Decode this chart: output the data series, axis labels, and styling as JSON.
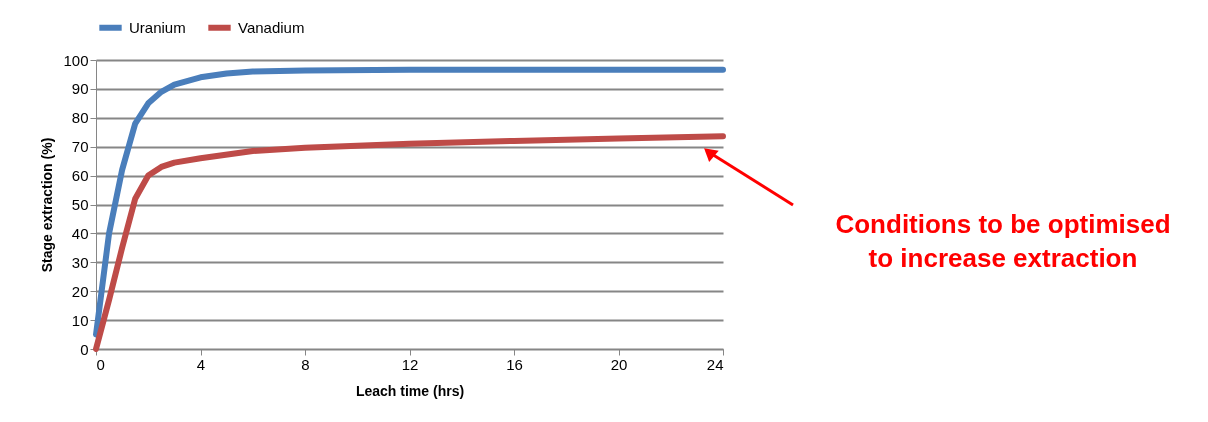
{
  "chart_data": {
    "type": "line",
    "xlabel": "Leach time (hrs)",
    "ylabel": "Stage extraction (%)",
    "xlim": [
      0,
      24
    ],
    "xticks": [
      0,
      4,
      8,
      12,
      16,
      20,
      24
    ],
    "ylim": [
      0,
      100
    ],
    "yticks": [
      0,
      10,
      20,
      30,
      40,
      50,
      60,
      70,
      80,
      90,
      100
    ],
    "grid": "y",
    "legend": "top",
    "marker": "none",
    "line_style": "solid",
    "series": [
      {
        "name": "Uranium",
        "color": "#4a7ebb",
        "x": [
          0,
          0.5,
          1,
          1.5,
          2,
          2.5,
          3,
          4,
          5,
          6,
          8,
          12,
          24
        ],
        "values": [
          5,
          40,
          62,
          78,
          85,
          89,
          91.5,
          94,
          95.3,
          96,
          96.4,
          96.6,
          96.6
        ]
      },
      {
        "name": "Vanadium",
        "color": "#be4b48",
        "x": [
          0,
          0.5,
          1,
          1.5,
          2,
          2.5,
          3,
          4,
          6,
          8,
          12,
          16,
          20,
          24
        ],
        "values": [
          0,
          17,
          35,
          52,
          60,
          63,
          64.5,
          66,
          68.5,
          69.6,
          71,
          72,
          72.8,
          73.6
        ]
      }
    ],
    "annotations": [
      "Conditions to be optimised\nto increase extraction"
    ]
  }
}
